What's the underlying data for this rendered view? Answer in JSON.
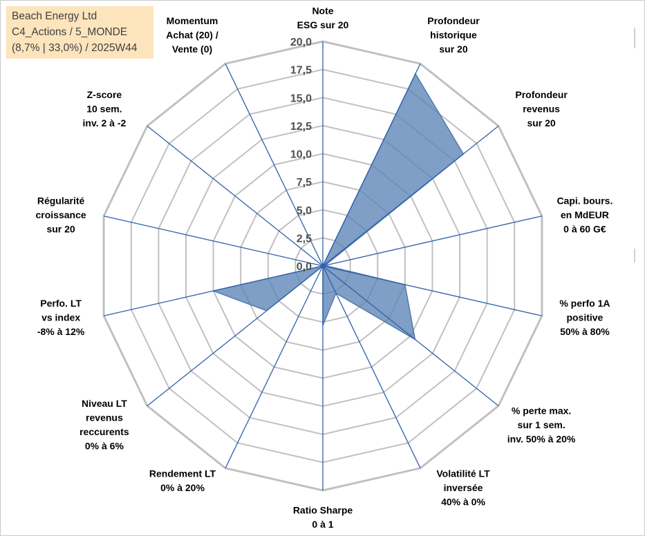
{
  "title_box": {
    "line1": "Beach Energy Ltd",
    "line2": "C4_Actions / 5_MONDE",
    "line3": "(8,7% | 33,0%) / 2025W44",
    "background": "#fce4bd"
  },
  "chart_data": {
    "type": "radar",
    "r_range": [
      0,
      20
    ],
    "r_step": 2.5,
    "tick_labels": [
      "0,0",
      "2,5",
      "5,0",
      "7,5",
      "10,0",
      "12,5",
      "15,0",
      "17,5",
      "20,0"
    ],
    "axes": [
      {
        "label_lines": [
          "Note",
          "ESG sur 20"
        ],
        "value": 0.0
      },
      {
        "label_lines": [
          "Profondeur",
          "historique",
          "sur 20"
        ],
        "value": 19.0
      },
      {
        "label_lines": [
          "Profondeur",
          "revenus",
          "sur 20"
        ],
        "value": 16.0
      },
      {
        "label_lines": [
          "Capi. bours.",
          "en MdEUR",
          "0 à 60 G€"
        ],
        "value": 0.2
      },
      {
        "label_lines": [
          "% perfo 1A",
          "positive",
          "50% à 80%"
        ],
        "value": 7.5
      },
      {
        "label_lines": [
          "% perte max.",
          "sur 1 sem.",
          "inv. 50% à 20%"
        ],
        "value": 10.5
      },
      {
        "label_lines": [
          "Volatilité LT",
          "inversée",
          "40% à 0%"
        ],
        "value": 2.7
      },
      {
        "label_lines": [
          "Ratio Sharpe",
          "0 à 1"
        ],
        "value": 5.3
      },
      {
        "label_lines": [
          "Rendement LT",
          "0% à 20%"
        ],
        "value": 0.0
      },
      {
        "label_lines": [
          "Niveau LT",
          "revenus",
          "reccurents",
          "0% à 6%"
        ],
        "value": 6.4
      },
      {
        "label_lines": [
          "Perfo. LT",
          "vs index",
          "-8% à 12%"
        ],
        "value": 10.0
      },
      {
        "label_lines": [
          "Régularité",
          "croissance",
          "sur 20"
        ],
        "value": 0.0
      },
      {
        "label_lines": [
          "Z-score",
          "10 sem.",
          "inv. 2 à -2"
        ],
        "value": 0.0
      },
      {
        "label_lines": [
          "Momentum",
          "Achat (20) /",
          "Vente (0)"
        ],
        "value": 0.0
      }
    ],
    "series": [
      {
        "name": "Beach Energy Ltd",
        "color": "#4f7aad",
        "fill": "#5b84b6"
      }
    ],
    "grid_color": "#c0c0c0",
    "spoke_color": "#2e5fa8"
  }
}
